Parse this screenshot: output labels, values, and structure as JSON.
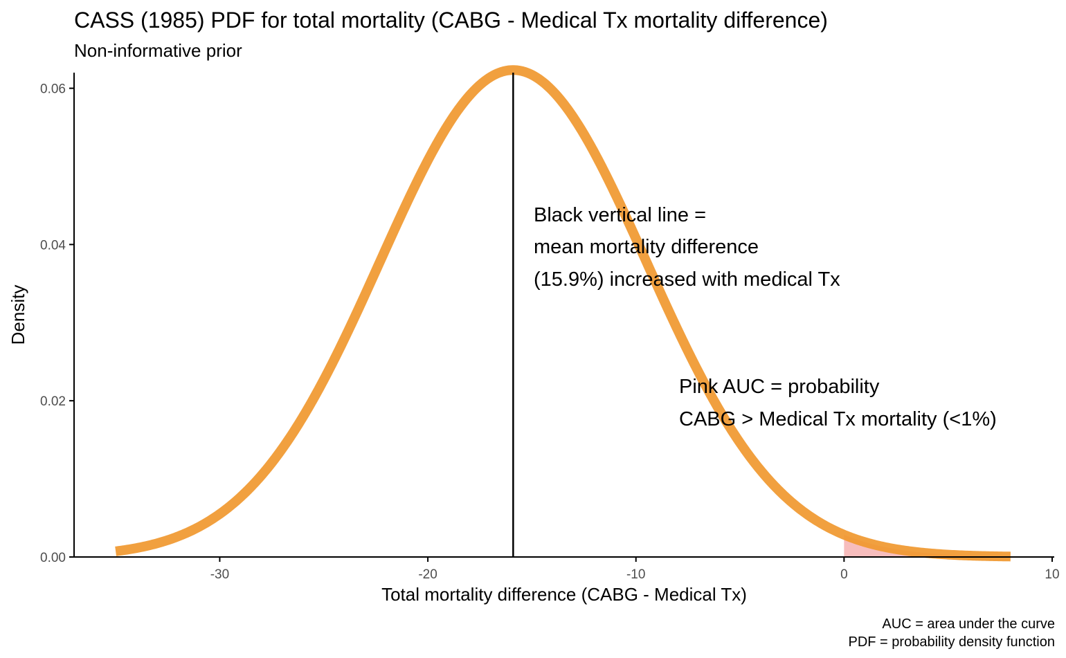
{
  "chart_data": {
    "type": "line",
    "title": "CASS (1985) PDF for total mortality (CABG - Medical Tx  mortality difference)",
    "subtitle": "Non-informative prior",
    "xlabel": "Total mortality difference (CABG - Medical Tx)",
    "ylabel": "Density",
    "xlim": [
      -35,
      10
    ],
    "ylim": [
      0,
      0.062
    ],
    "xticks": [
      -30,
      -20,
      -10,
      0,
      10
    ],
    "xtick_labels": [
      "-30",
      "-20",
      "-10",
      "0",
      "10"
    ],
    "yticks": [
      0,
      0.02,
      0.04,
      0.06
    ],
    "ytick_labels": [
      "0.00",
      "0.02",
      "0.04",
      "0.06"
    ],
    "curve": {
      "distribution": "normal",
      "mean": -15.9,
      "sd": 6.4,
      "x_start": -35,
      "x_end": 8,
      "color": "#F0982F"
    },
    "shaded_area": {
      "from": 0,
      "to": 8,
      "color": "#F4A7A7"
    },
    "vertical_line": {
      "x": -15.9,
      "color": "#000000"
    },
    "annotations": [
      {
        "lines": [
          "Black vertical line =",
          "mean mortality difference",
          "(15.9%) increased with medical Tx"
        ]
      },
      {
        "lines": [
          "Pink AUC = probability",
          "CABG > Medical Tx mortality (<1%)"
        ]
      }
    ],
    "caption": [
      "AUC = area under the curve",
      "PDF = probability density function"
    ],
    "grid": false
  }
}
